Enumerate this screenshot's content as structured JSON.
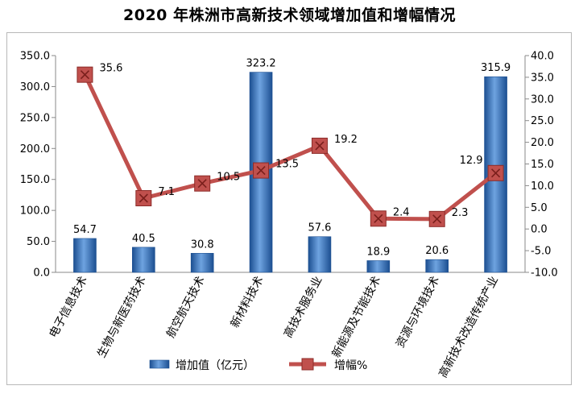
{
  "title": "2020 年株洲市高新技术领域增加值和增幅情况",
  "chart_data": {
    "type": "bar",
    "title": "2020 年株洲市高新技术领域增加值和增幅情况",
    "categories": [
      "电子信息技术",
      "生物与新医药技术",
      "航空航天技术",
      "新材料技术",
      "高技术服务业",
      "新能源及节能技术",
      "资源与环境技术",
      "高新技术改造传统产业"
    ],
    "series": [
      {
        "name": "增加值（亿元）",
        "type": "bar",
        "axis": "left",
        "values": [
          54.7,
          40.5,
          30.8,
          323.2,
          57.6,
          18.9,
          20.6,
          315.9
        ],
        "labels": [
          "54.7",
          "40.5",
          "30.8",
          "323.2",
          "57.6",
          "18.9",
          "20.6",
          "315.9"
        ]
      },
      {
        "name": "增幅%",
        "type": "line",
        "axis": "right",
        "values": [
          35.6,
          7.1,
          10.5,
          13.5,
          19.2,
          2.4,
          2.3,
          12.9
        ],
        "labels": [
          "35.6",
          "7.1",
          "10.5",
          "13.5",
          "19.2",
          "2.4",
          "2.3",
          "12.9"
        ]
      }
    ],
    "y_left": {
      "min": 0,
      "max": 350,
      "step": 50,
      "ticks": [
        "0.0",
        "50.0",
        "100.0",
        "150.0",
        "200.0",
        "250.0",
        "300.0",
        "350.0"
      ]
    },
    "y_right": {
      "min": -10,
      "max": 40,
      "step": 5,
      "ticks": [
        "-10.0",
        "-5.0",
        "0.0",
        "5.0",
        "10.0",
        "15.0",
        "20.0",
        "25.0",
        "30.0",
        "35.0",
        "40.0"
      ]
    },
    "legend": {
      "position": "bottom",
      "entries": [
        "增加值（亿元）",
        "增幅%"
      ]
    },
    "colors": {
      "bar": "#2e6fbf",
      "bar_light": "#6ea3e0",
      "bar_dark": "#1c4f91",
      "line": "#c0504d",
      "marker": "#c0504d",
      "marker_border": "#8c2b28"
    }
  }
}
